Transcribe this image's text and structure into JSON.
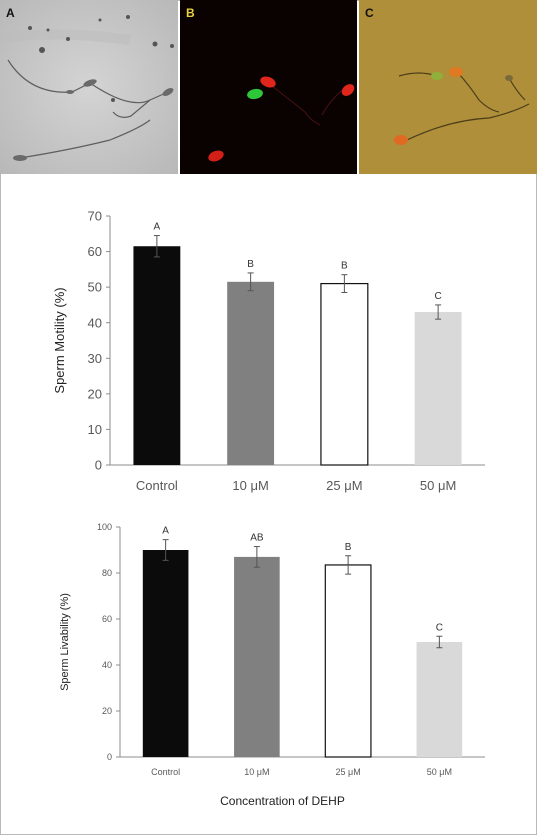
{
  "panels": [
    {
      "label": "A",
      "label_color": "#111111"
    },
    {
      "label": "B",
      "label_color": "#e8d33a"
    },
    {
      "label": "C",
      "label_color": "#111111"
    }
  ],
  "colors": {
    "control": "#0b0b0b",
    "dose10": "#808080",
    "dose25": "#ffffff",
    "dose50": "#d9d9d9",
    "axis": "#8c8c8c",
    "text": "#595959"
  },
  "chart_data": [
    {
      "type": "bar",
      "categories": [
        "Control",
        "10 μM",
        "25 μM",
        "50 μM"
      ],
      "values": [
        61.5,
        51.5,
        51,
        43
      ],
      "errors": [
        3,
        2.5,
        2.5,
        2
      ],
      "letters": [
        "A",
        "B",
        "B",
        "C"
      ],
      "ylabel": "Sperm Motility (%)",
      "xlabel": "",
      "ylim": [
        0,
        70
      ],
      "yticks": [
        "0",
        "10",
        "20",
        "30",
        "40",
        "50",
        "60",
        "70"
      ],
      "grid": false
    },
    {
      "type": "bar",
      "categories": [
        "Control",
        "10 μM",
        "25 μM",
        "50 μM"
      ],
      "values": [
        90,
        87,
        83.5,
        50
      ],
      "errors": [
        4.5,
        4.5,
        4,
        2.5
      ],
      "letters": [
        "A",
        "AB",
        "B",
        "C"
      ],
      "ylabel": "Sperm Livability (%)",
      "xlabel": "Concentration of DEHP",
      "ylim": [
        0,
        100
      ],
      "yticks": [
        "0",
        "20",
        "40",
        "60",
        "80",
        "100"
      ],
      "grid": false
    }
  ]
}
